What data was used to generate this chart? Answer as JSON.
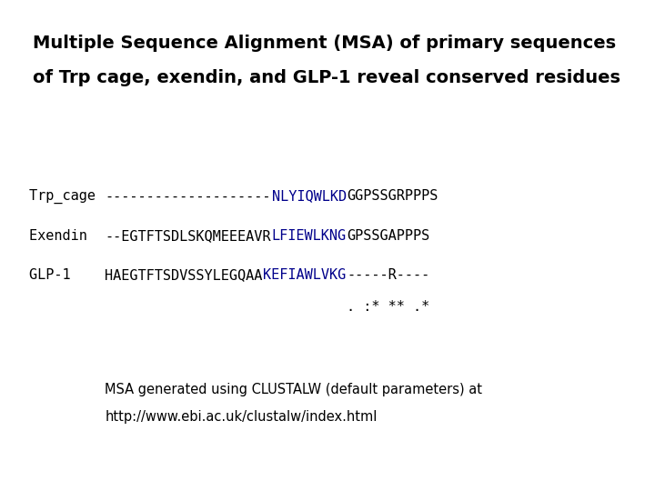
{
  "title_line1": "Multiple Sequence Alignment (MSA) of primary sequences",
  "title_line2": "of Trp cage, exendin, and GLP-1 reveal conserved residues",
  "title_fontsize": 14,
  "title_fontweight": "bold",
  "bg_color": "#ffffff",
  "sequences": [
    {
      "label": "Trp_cage ",
      "segments": [
        {
          "text": "--------------------",
          "color": "#000000"
        },
        {
          "text": "NLYIQWLKD",
          "color": "#00008B"
        },
        {
          "text": "GGPSSGRPPPS",
          "color": "#000000"
        }
      ]
    },
    {
      "label": "Exendin  ",
      "segments": [
        {
          "text": "--EGTFTSDLSKQMEEEAVR",
          "color": "#000000"
        },
        {
          "text": "LFIEWLKNG",
          "color": "#00008B"
        },
        {
          "text": "GPSSGAPPPS",
          "color": "#000000"
        }
      ]
    },
    {
      "label": "GLP-1    ",
      "segments": [
        {
          "text": "HAEGTFTSDVSSYLEGQAA",
          "color": "#000000"
        },
        {
          "text": "KEFIAWLVKG",
          "color": "#00008B"
        },
        {
          "text": "-----R----",
          "color": "#000000"
        }
      ]
    }
  ],
  "conservation_prefix_spaces": 29,
  "conservation_text": ". :* ** .*",
  "label_color": "#000000",
  "seq_fontsize": 11,
  "seq_font": "monospace",
  "footer_text_line1": "MSA generated using CLUSTALW (default parameters) at",
  "footer_text_line2": "http://www.ebi.ac.uk/clustalw/index.html",
  "footer_fontsize": 10.5
}
